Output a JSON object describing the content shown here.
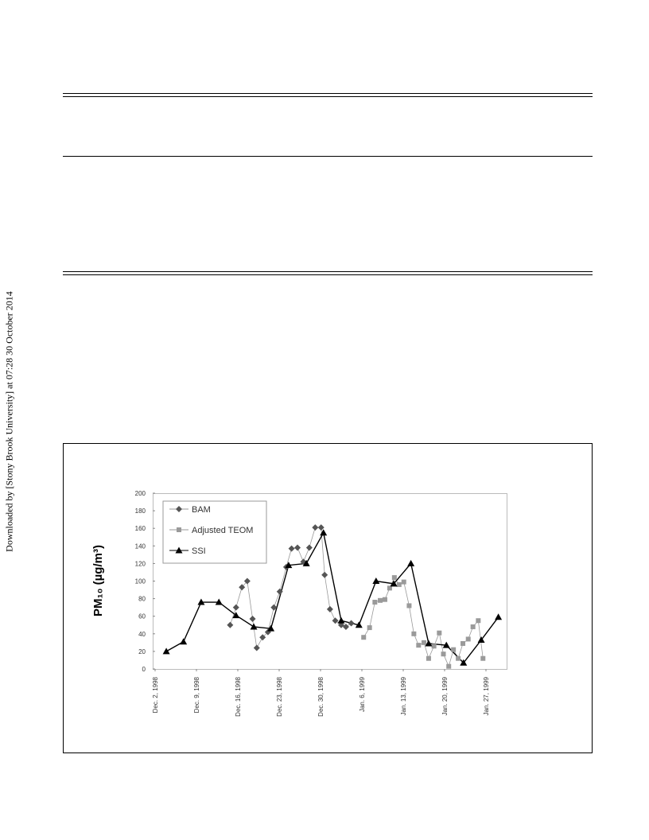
{
  "watermark": "Downloaded by [Stony Brook University] at 07:28 30 October 2014",
  "chart_data": {
    "type": "line",
    "y_label": "PM₁₀ (µg/m³)",
    "xlim": [
      0,
      59.5
    ],
    "ylim": [
      0,
      200
    ],
    "yticks": [
      0,
      20,
      40,
      60,
      80,
      100,
      120,
      140,
      160,
      180,
      200
    ],
    "xticks": [
      {
        "value": 0,
        "label": "Dec. 2, 1998"
      },
      {
        "value": 7,
        "label": "Dec. 9, 1998"
      },
      {
        "value": 14,
        "label": "Dec. 16, 1998"
      },
      {
        "value": 21,
        "label": "Dec. 23, 1998"
      },
      {
        "value": 28,
        "label": "Dec. 30, 1998"
      },
      {
        "value": 35,
        "label": "Jan. 6, 1999"
      },
      {
        "value": 42,
        "label": "Jan. 13, 1999"
      },
      {
        "value": 49,
        "label": "Jan. 20, 1999"
      },
      {
        "value": 56,
        "label": "Jan. 27, 1999"
      }
    ],
    "legend": "top-left",
    "series": [
      {
        "name": "BAM",
        "color": "#555555",
        "marker": "diamond",
        "x": [
          12.7,
          13.7,
          14.7,
          15.6,
          16.5,
          17.2,
          18.2,
          19.1,
          20.1,
          21.1,
          22.2,
          23.1,
          24.1,
          25.1,
          26.1,
          27.1,
          28.1,
          28.7,
          29.6,
          30.5,
          31.5,
          32.3,
          33.2
        ],
        "values": [
          50,
          70,
          93,
          100,
          57,
          24,
          36,
          42,
          70,
          88,
          116,
          137,
          138,
          122,
          138,
          161,
          161,
          107,
          68,
          55,
          50,
          48,
          52
        ]
      },
      {
        "name": "Adjusted TEOM",
        "color": "#9a9a9a",
        "marker": "square",
        "x": [
          35.3,
          36.3,
          37.2,
          38.1,
          38.9,
          39.7,
          40.5,
          41.3,
          42.1,
          43.0,
          43.8,
          44.6,
          45.5,
          46.3,
          47.2,
          48.1,
          48.8,
          49.7,
          50.5,
          51.3,
          52.1,
          53.0,
          53.8,
          54.7,
          55.5
        ],
        "values": [
          36,
          47,
          76,
          78,
          79,
          92,
          104,
          96,
          99,
          72,
          40,
          27,
          30,
          12,
          26,
          41,
          17,
          3,
          22,
          12,
          29,
          34,
          48,
          55,
          12
        ]
      },
      {
        "name": "SSI",
        "color": "#000000",
        "marker": "triangle",
        "x": [
          1.9,
          4.8,
          7.8,
          10.8,
          13.7,
          16.7,
          19.6,
          22.6,
          25.6,
          28.5,
          31.5,
          34.5,
          37.4,
          40.4,
          43.3,
          46.3,
          49.3,
          52.2,
          55.2,
          58.1
        ],
        "values": [
          20,
          31,
          76,
          76,
          61,
          48,
          46,
          118,
          120,
          155,
          55,
          50,
          100,
          97,
          120,
          29,
          27,
          7,
          33,
          59
        ]
      }
    ]
  }
}
